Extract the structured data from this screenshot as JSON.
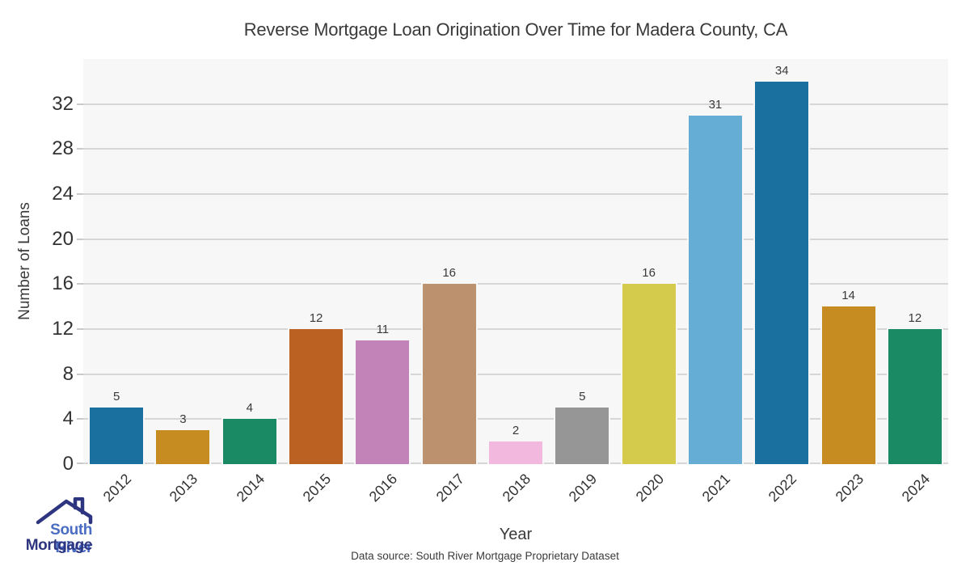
{
  "title": "Reverse Mortgage Loan Origination Over Time for Madera County, CA",
  "axis": {
    "x_label": "Year",
    "y_label": "Number of Loans"
  },
  "source_note": "Data source: South River Mortgage Proprietary Dataset",
  "logo": {
    "name": "South River Mortgage",
    "line1": "South River",
    "line2": "Mortgage",
    "line1_color": "#4a6cc2",
    "line2_color": "#2d3580",
    "roof_color": "#2d3580"
  },
  "chart_data": {
    "type": "bar",
    "title": "Reverse Mortgage Loan Origination Over Time for Madera County, CA",
    "xlabel": "Year",
    "ylabel": "Number of Loans",
    "categories": [
      "2012",
      "2013",
      "2014",
      "2015",
      "2016",
      "2017",
      "2018",
      "2019",
      "2020",
      "2021",
      "2022",
      "2023",
      "2024"
    ],
    "values": [
      5,
      3,
      4,
      12,
      11,
      16,
      2,
      5,
      16,
      31,
      34,
      14,
      12
    ],
    "bar_colors": [
      "#1a709e",
      "#c68b21",
      "#1a8a64",
      "#bb6122",
      "#c283b8",
      "#bb916e",
      "#f2b8dd",
      "#969696",
      "#d4ca4c",
      "#66add6",
      "#1a709e",
      "#c68b21",
      "#1a8a64"
    ],
    "ylim": [
      0,
      36
    ],
    "yticks": [
      0,
      4,
      8,
      12,
      16,
      20,
      24,
      28,
      32
    ],
    "grid": "horizontal",
    "gridline_color": "#d6d6d6",
    "plot_background": "#f7f7f7",
    "bar_value_labels": true,
    "x_tick_rotation_deg": 45,
    "legend": "none"
  }
}
